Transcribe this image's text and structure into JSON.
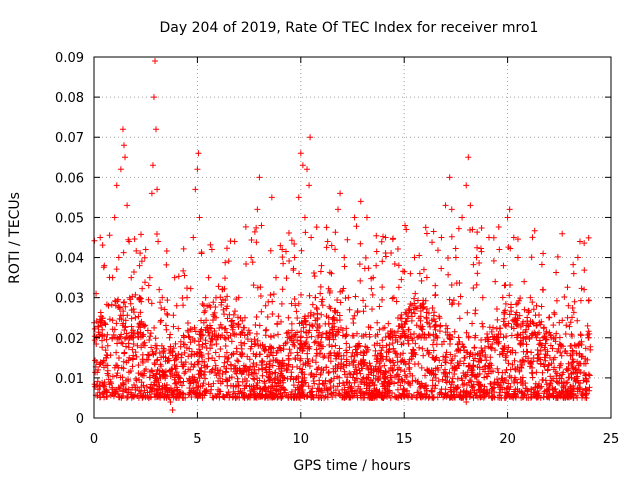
{
  "chart_data": {
    "type": "scatter",
    "title": "Day 204 of 2019, Rate Of TEC Index for receiver mro1",
    "xlabel": "GPS time / hours",
    "ylabel": "ROTI / TECUs",
    "xlim": [
      0,
      25
    ],
    "ylim": [
      0,
      0.09
    ],
    "xticks": [
      0,
      5,
      10,
      15,
      20,
      25
    ],
    "xtick_labels": [
      "0",
      "5",
      "10",
      "15",
      "20",
      "25"
    ],
    "yticks": [
      0,
      0.01,
      0.02,
      0.03,
      0.04,
      0.05,
      0.06,
      0.07,
      0.08,
      0.09
    ],
    "ytick_labels": [
      "0",
      "0.01",
      "0.02",
      "0.03",
      "0.04",
      "0.05",
      "0.06",
      "0.07",
      "0.08",
      "0.09"
    ],
    "grid": true,
    "marker": "+",
    "color": "#ff0000",
    "series": [
      {
        "name": "ROTI",
        "points": [
          [
            0.1,
            0.031
          ],
          [
            0.2,
            0.012
          ],
          [
            0.3,
            0.045
          ],
          [
            0.4,
            0.022
          ],
          [
            0.5,
            0.038
          ],
          [
            0.6,
            0.015
          ],
          [
            0.7,
            0.028
          ],
          [
            0.8,
            0.009
          ],
          [
            0.9,
            0.035
          ],
          [
            1.0,
            0.05
          ],
          [
            1.1,
            0.058
          ],
          [
            1.2,
            0.04
          ],
          [
            1.3,
            0.062
          ],
          [
            1.4,
            0.072
          ],
          [
            1.45,
            0.068
          ],
          [
            1.5,
            0.065
          ],
          [
            1.6,
            0.053
          ],
          [
            1.7,
            0.044
          ],
          [
            1.8,
            0.035
          ],
          [
            1.9,
            0.02
          ],
          [
            2.0,
            0.025
          ],
          [
            2.1,
            0.018
          ],
          [
            2.2,
            0.03
          ],
          [
            2.3,
            0.024
          ],
          [
            2.5,
            0.042
          ],
          [
            2.7,
            0.035
          ],
          [
            2.8,
            0.056
          ],
          [
            2.85,
            0.063
          ],
          [
            2.9,
            0.08
          ],
          [
            2.95,
            0.089
          ],
          [
            3.0,
            0.072
          ],
          [
            3.05,
            0.057
          ],
          [
            3.1,
            0.044
          ],
          [
            3.3,
            0.03
          ],
          [
            3.5,
            0.022
          ],
          [
            3.7,
            0.004
          ],
          [
            3.8,
            0.002
          ],
          [
            3.9,
            0.035
          ],
          [
            4.0,
            0.028
          ],
          [
            4.2,
            0.019
          ],
          [
            4.5,
            0.03
          ],
          [
            4.8,
            0.045
          ],
          [
            4.9,
            0.057
          ],
          [
            5.0,
            0.062
          ],
          [
            5.05,
            0.066
          ],
          [
            5.1,
            0.05
          ],
          [
            5.2,
            0.041
          ],
          [
            5.4,
            0.03
          ],
          [
            5.7,
            0.042
          ],
          [
            5.9,
            0.025
          ],
          [
            6.2,
            0.032
          ],
          [
            6.5,
            0.02
          ],
          [
            6.8,
            0.044
          ],
          [
            7.0,
            0.03
          ],
          [
            7.3,
            0.025
          ],
          [
            7.6,
            0.04
          ],
          [
            7.9,
            0.052
          ],
          [
            8.0,
            0.06
          ],
          [
            8.1,
            0.048
          ],
          [
            8.3,
            0.028
          ],
          [
            8.6,
            0.055
          ],
          [
            8.8,
            0.035
          ],
          [
            9.1,
            0.042
          ],
          [
            9.4,
            0.025
          ],
          [
            9.7,
            0.04
          ],
          [
            9.9,
            0.055
          ],
          [
            10.0,
            0.066
          ],
          [
            10.1,
            0.063
          ],
          [
            10.2,
            0.05
          ],
          [
            10.3,
            0.062
          ],
          [
            10.4,
            0.058
          ],
          [
            10.45,
            0.07
          ],
          [
            10.5,
            0.045
          ],
          [
            10.7,
            0.03
          ],
          [
            11.0,
            0.038
          ],
          [
            11.3,
            0.044
          ],
          [
            11.6,
            0.025
          ],
          [
            11.8,
            0.052
          ],
          [
            11.9,
            0.056
          ],
          [
            12.1,
            0.04
          ],
          [
            12.3,
            0.03
          ],
          [
            12.6,
            0.05
          ],
          [
            12.9,
            0.054
          ],
          [
            13.2,
            0.05
          ],
          [
            13.5,
            0.035
          ],
          [
            13.8,
            0.022
          ],
          [
            14.1,
            0.045
          ],
          [
            14.5,
            0.03
          ],
          [
            14.8,
            0.02
          ],
          [
            15.1,
            0.047
          ],
          [
            15.3,
            0.036
          ],
          [
            15.5,
            0.04
          ],
          [
            15.8,
            0.028
          ],
          [
            16.1,
            0.046
          ],
          [
            16.5,
            0.033
          ],
          [
            16.8,
            0.045
          ],
          [
            17.0,
            0.053
          ],
          [
            17.2,
            0.06
          ],
          [
            17.3,
            0.052
          ],
          [
            17.5,
            0.04
          ],
          [
            17.8,
            0.05
          ],
          [
            18.0,
            0.058
          ],
          [
            18.1,
            0.065
          ],
          [
            18.2,
            0.053
          ],
          [
            18.3,
            0.047
          ],
          [
            18.5,
            0.04
          ],
          [
            18.8,
            0.03
          ],
          [
            19.1,
            0.045
          ],
          [
            19.4,
            0.034
          ],
          [
            19.6,
            0.042
          ],
          [
            19.8,
            0.038
          ],
          [
            20.0,
            0.05
          ],
          [
            20.1,
            0.052
          ],
          [
            20.3,
            0.045
          ],
          [
            20.5,
            0.04
          ],
          [
            20.8,
            0.034
          ],
          [
            21.1,
            0.03
          ],
          [
            21.4,
            0.028
          ],
          [
            21.7,
            0.032
          ],
          [
            22.0,
            0.025
          ],
          [
            22.3,
            0.02
          ],
          [
            22.6,
            0.018
          ],
          [
            22.9,
            0.025
          ],
          [
            23.2,
            0.036
          ],
          [
            23.4,
            0.04
          ],
          [
            23.5,
            0.044
          ],
          [
            23.7,
            0.032
          ],
          [
            23.9,
            0.02
          ],
          [
            0.3,
            0.008
          ],
          [
            1.0,
            0.006
          ],
          [
            2.0,
            0.007
          ],
          [
            3.0,
            0.006
          ],
          [
            4.0,
            0.005
          ],
          [
            5.0,
            0.007
          ],
          [
            6.0,
            0.006
          ],
          [
            7.0,
            0.008
          ],
          [
            8.0,
            0.006
          ],
          [
            9.0,
            0.007
          ],
          [
            10.0,
            0.006
          ],
          [
            11.0,
            0.005
          ],
          [
            12.0,
            0.007
          ],
          [
            13.0,
            0.006
          ],
          [
            14.0,
            0.005
          ],
          [
            15.0,
            0.007
          ],
          [
            16.0,
            0.006
          ],
          [
            17.0,
            0.006
          ],
          [
            18.0,
            0.004
          ],
          [
            19.0,
            0.007
          ],
          [
            20.0,
            0.006
          ],
          [
            21.0,
            0.005
          ],
          [
            22.0,
            0.007
          ],
          [
            23.0,
            0.006
          ]
        ]
      }
    ],
    "dense_band": {
      "description": "dense cloud of points",
      "x_range": [
        0,
        24
      ],
      "y_typical_min": 0.005,
      "y_typical_max": 0.03
    }
  }
}
